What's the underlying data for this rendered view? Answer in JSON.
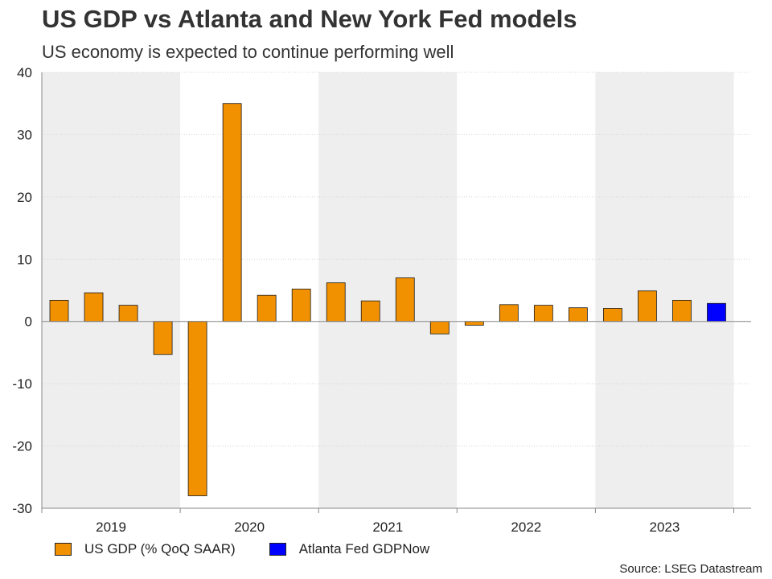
{
  "chart_data": {
    "type": "bar",
    "title": "US GDP vs Atlanta and New York Fed models",
    "subtitle": "US economy is expected to continue performing well",
    "ylim": [
      -30,
      40
    ],
    "yticks": [
      40,
      30,
      20,
      10,
      0,
      -10,
      -20,
      -30
    ],
    "years": [
      "2019",
      "2020",
      "2021",
      "2022",
      "2023"
    ],
    "grid": "horizontal dotted",
    "shaded_year_bands": true,
    "series": [
      {
        "name": "US GDP (% QoQ SAAR)",
        "color": "#F29100",
        "values": [
          3.4,
          4.6,
          2.6,
          -5.3,
          -28.0,
          35.0,
          4.2,
          5.2,
          6.2,
          3.3,
          7.0,
          -2.0,
          -0.6,
          2.7,
          2.6,
          2.2,
          2.1,
          4.9,
          3.4
        ]
      },
      {
        "name": "Atlanta Fed GDPNow",
        "color": "#0000FF",
        "values": [
          2.9
        ]
      }
    ],
    "legend_position": "bottom-left",
    "source": "Source: LSEG Datastream"
  }
}
